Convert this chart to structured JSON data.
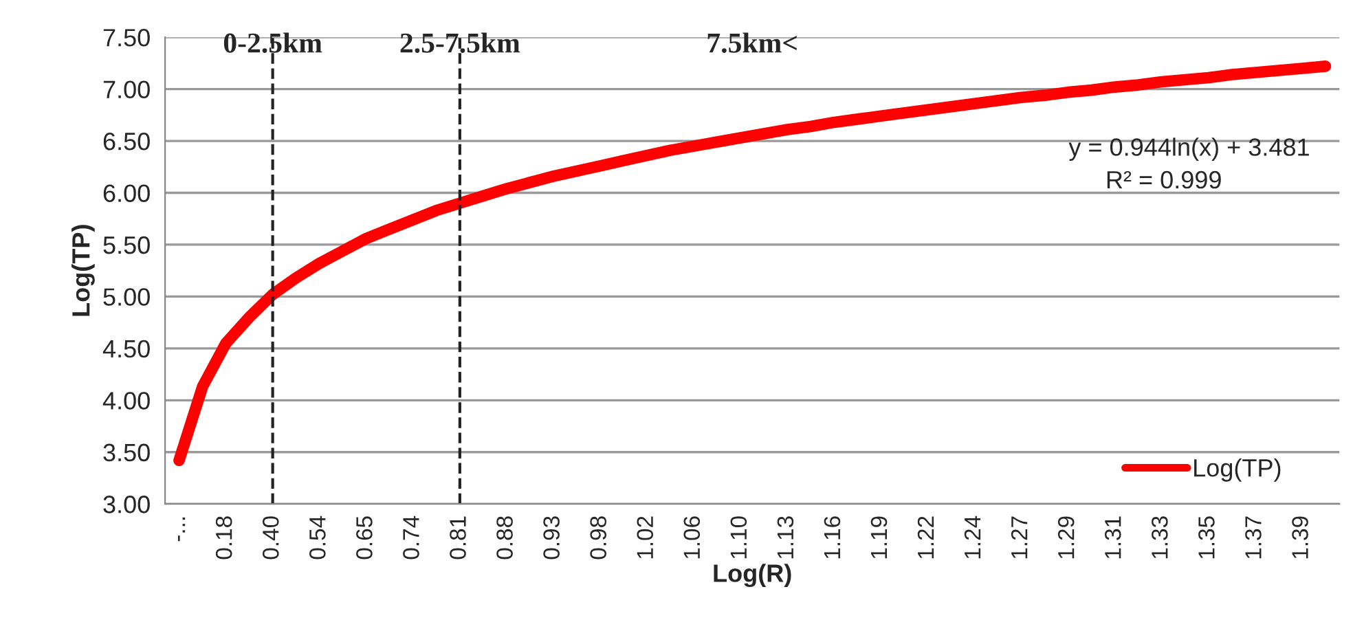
{
  "chart_data": {
    "type": "line",
    "xlabel": "Log(R)",
    "ylabel": "Log(TP)",
    "categories": [
      "-...",
      null,
      "0.18",
      null,
      "0.40",
      null,
      "0.54",
      null,
      "0.65",
      null,
      "0.74",
      null,
      "0.81",
      null,
      "0.88",
      null,
      "0.93",
      null,
      "0.98",
      null,
      "1.02",
      null,
      "1.06",
      null,
      "1.10",
      null,
      "1.13",
      null,
      "1.16",
      null,
      "1.19",
      null,
      "1.22",
      null,
      "1.24",
      null,
      "1.27",
      null,
      "1.29",
      null,
      "1.31",
      null,
      "1.33",
      null,
      "1.35",
      null,
      "1.37",
      null,
      "1.39",
      null
    ],
    "series": [
      {
        "name": "Log(TP)",
        "color": "#ff0000",
        "values": [
          3.42,
          4.13,
          4.55,
          4.8,
          5.02,
          5.18,
          5.32,
          5.44,
          5.56,
          5.65,
          5.74,
          5.83,
          5.9,
          5.97,
          6.04,
          6.1,
          6.16,
          6.21,
          6.26,
          6.31,
          6.36,
          6.41,
          6.45,
          6.49,
          6.53,
          6.57,
          6.61,
          6.64,
          6.68,
          6.71,
          6.74,
          6.77,
          6.8,
          6.83,
          6.86,
          6.89,
          6.92,
          6.94,
          6.97,
          6.99,
          7.02,
          7.04,
          7.07,
          7.09,
          7.11,
          7.14,
          7.16,
          7.18,
          7.2,
          7.22
        ]
      }
    ],
    "ylim": [
      3.0,
      7.5
    ],
    "yticks": [
      {
        "value": 3.0,
        "label": "3.00"
      },
      {
        "value": 3.5,
        "label": "3.50"
      },
      {
        "value": 4.0,
        "label": "4.00"
      },
      {
        "value": 4.5,
        "label": "4.50"
      },
      {
        "value": 5.0,
        "label": "5.00"
      },
      {
        "value": 5.5,
        "label": "5.50"
      },
      {
        "value": 6.0,
        "label": "6.00"
      },
      {
        "value": 6.5,
        "label": "6.50"
      },
      {
        "value": 7.0,
        "label": "7.00"
      },
      {
        "value": 7.5,
        "label": "7.50"
      }
    ],
    "ref_lines": [
      {
        "axis": "x",
        "value": "0.40",
        "label": "0-2.5km",
        "color": "#222222",
        "line_style": "dashed"
      },
      {
        "axis": "x",
        "value": "0.81",
        "label": "2.5-7.5km",
        "color": "#222222",
        "line_style": "dashed"
      }
    ],
    "annotations": [
      "7.5km<",
      "y = 0.944ln(x) + 3.481",
      "R² = 0.999"
    ],
    "grid": "y",
    "legend": "bottom right",
    "marker": "none",
    "line_style": "solid"
  }
}
